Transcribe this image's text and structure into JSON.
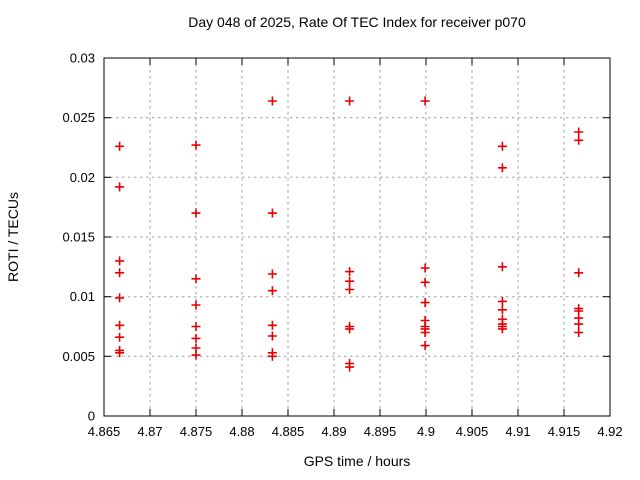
{
  "chart_data": {
    "type": "scatter",
    "title": "Day 048 of 2025, Rate Of TEC Index for receiver p070",
    "xlabel": "GPS time / hours",
    "ylabel": "ROTI / TECUs",
    "xlim": [
      4.865,
      4.92
    ],
    "ylim": [
      0,
      0.03
    ],
    "xtick_values": [
      4.865,
      4.87,
      4.875,
      4.88,
      4.885,
      4.89,
      4.895,
      4.9,
      4.905,
      4.91,
      4.915,
      4.92
    ],
    "xtick_labels": [
      "4.865",
      "4.87",
      "4.875",
      "4.88",
      "4.885",
      "4.89",
      "4.895",
      "4.9",
      "4.905",
      "4.91",
      "4.915",
      "4.92"
    ],
    "ytick_values": [
      0,
      0.005,
      0.01,
      0.015,
      0.02,
      0.025,
      0.03
    ],
    "ytick_labels": [
      "0",
      "0.005",
      "0.01",
      "0.015",
      "0.02",
      "0.025",
      "0.03"
    ],
    "grid": true,
    "legend": "none",
    "marker": "plus",
    "colors": {
      "marker": "#e60000",
      "grid": "#a0a0a0",
      "axis": "#000000",
      "text": "#000000",
      "background": "#ffffff"
    },
    "series": [
      {
        "name": "ROTI",
        "points": [
          [
            4.8667,
            0.0226
          ],
          [
            4.8667,
            0.0192
          ],
          [
            4.8667,
            0.013
          ],
          [
            4.8667,
            0.012
          ],
          [
            4.8667,
            0.0099
          ],
          [
            4.8667,
            0.0076
          ],
          [
            4.8667,
            0.0066
          ],
          [
            4.8667,
            0.0055
          ],
          [
            4.8667,
            0.0053
          ],
          [
            4.875,
            0.0227
          ],
          [
            4.875,
            0.017
          ],
          [
            4.875,
            0.0115
          ],
          [
            4.875,
            0.0093
          ],
          [
            4.875,
            0.0075
          ],
          [
            4.875,
            0.0065
          ],
          [
            4.875,
            0.0057
          ],
          [
            4.875,
            0.0051
          ],
          [
            4.8833,
            0.0264
          ],
          [
            4.8833,
            0.017
          ],
          [
            4.8833,
            0.0119
          ],
          [
            4.8833,
            0.0105
          ],
          [
            4.8833,
            0.0076
          ],
          [
            4.8833,
            0.0067
          ],
          [
            4.8833,
            0.0053
          ],
          [
            4.8833,
            0.005
          ],
          [
            4.8917,
            0.0264
          ],
          [
            4.8917,
            0.0121
          ],
          [
            4.8917,
            0.0113
          ],
          [
            4.8917,
            0.0106
          ],
          [
            4.8917,
            0.0075
          ],
          [
            4.8917,
            0.0073
          ],
          [
            4.8917,
            0.0044
          ],
          [
            4.8917,
            0.0041
          ],
          [
            4.8999,
            0.0264
          ],
          [
            4.8999,
            0.0124
          ],
          [
            4.8999,
            0.0112
          ],
          [
            4.8999,
            0.0095
          ],
          [
            4.8999,
            0.008
          ],
          [
            4.8999,
            0.0075
          ],
          [
            4.8999,
            0.0073
          ],
          [
            4.8999,
            0.007
          ],
          [
            4.8999,
            0.0059
          ],
          [
            4.9083,
            0.0226
          ],
          [
            4.9083,
            0.0208
          ],
          [
            4.9083,
            0.0125
          ],
          [
            4.9083,
            0.0096
          ],
          [
            4.9083,
            0.0089
          ],
          [
            4.9083,
            0.0081
          ],
          [
            4.9083,
            0.0077
          ],
          [
            4.9083,
            0.0075
          ],
          [
            4.9083,
            0.0073
          ],
          [
            4.9166,
            0.0238
          ],
          [
            4.9166,
            0.0231
          ],
          [
            4.9166,
            0.012
          ],
          [
            4.9166,
            0.009
          ],
          [
            4.9166,
            0.0088
          ],
          [
            4.9166,
            0.0082
          ],
          [
            4.9166,
            0.0077
          ],
          [
            4.9166,
            0.007
          ]
        ]
      }
    ]
  }
}
